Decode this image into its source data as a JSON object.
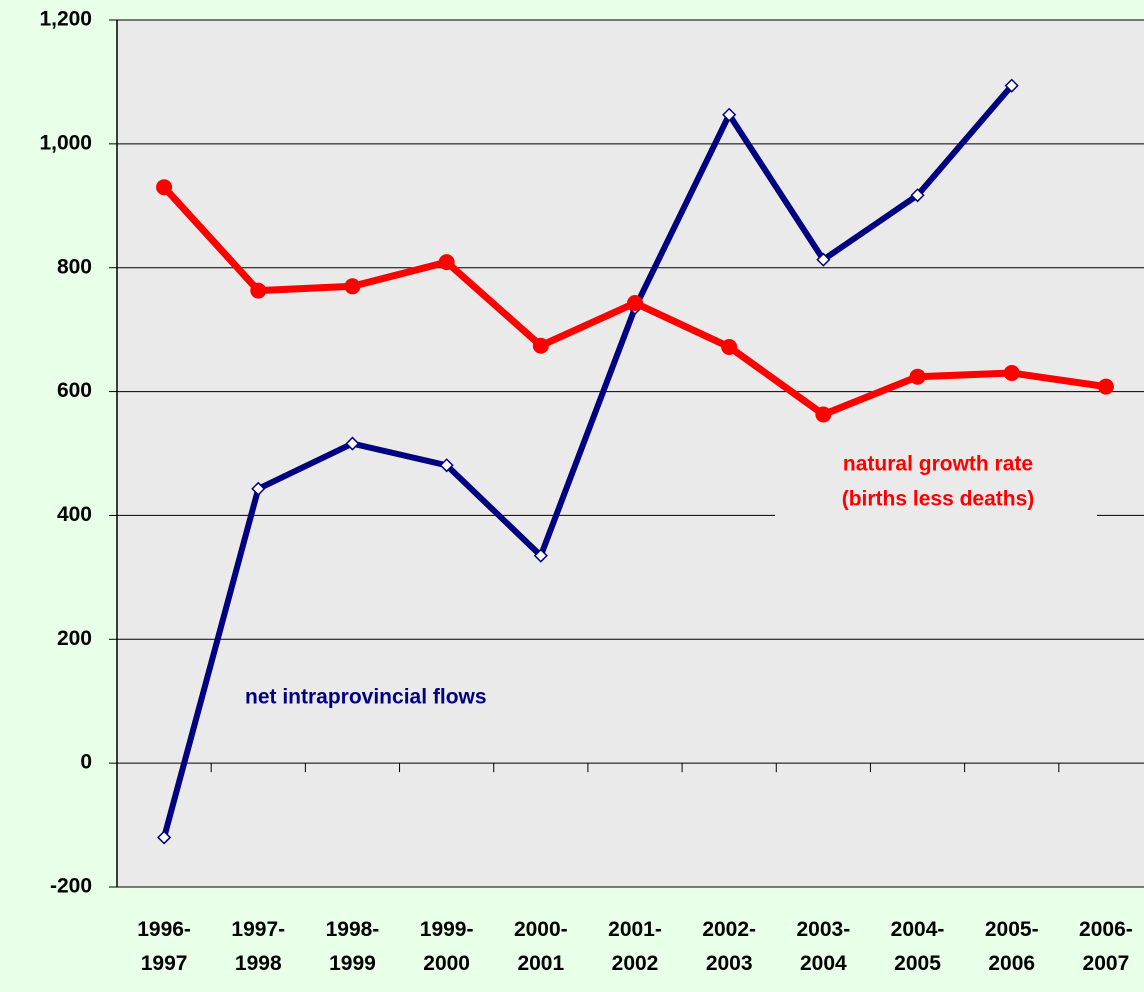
{
  "chart_data": {
    "type": "line",
    "categories": [
      "1996- 1997",
      "1997- 1998",
      "1998- 1999",
      "1999- 2000",
      "2000- 2001",
      "2001- 2002",
      "2002- 2003",
      "2003- 2004",
      "2004- 2005",
      "2005- 2006",
      "2006- 2007"
    ],
    "series": [
      {
        "name": "net intraprovincial flows",
        "color": "#000080",
        "marker": "diamond",
        "values": [
          -120,
          443,
          516,
          481,
          335,
          735,
          1047,
          813,
          917,
          1094,
          null
        ]
      },
      {
        "name": "natural growth rate (births less deaths)",
        "color": "#ff0000",
        "marker": "circle",
        "values": [
          930,
          763,
          770,
          809,
          674,
          743,
          672,
          563,
          624,
          630,
          608
        ]
      }
    ],
    "annotations": [
      {
        "text": "net intraprovincial flows",
        "color": "#000080"
      },
      {
        "text": "natural growth rate",
        "color": "#ff0000"
      },
      {
        "text": "(births less deaths)",
        "color": "#ff0000"
      }
    ],
    "ylim": [
      -200,
      1200
    ],
    "yticks": [
      {
        "value": -200,
        "label": "-200"
      },
      0,
      200,
      400,
      600,
      800,
      {
        "value": 1000,
        "label": "1,000"
      },
      {
        "value": 1200,
        "label": "1,200"
      }
    ],
    "grid": true
  }
}
